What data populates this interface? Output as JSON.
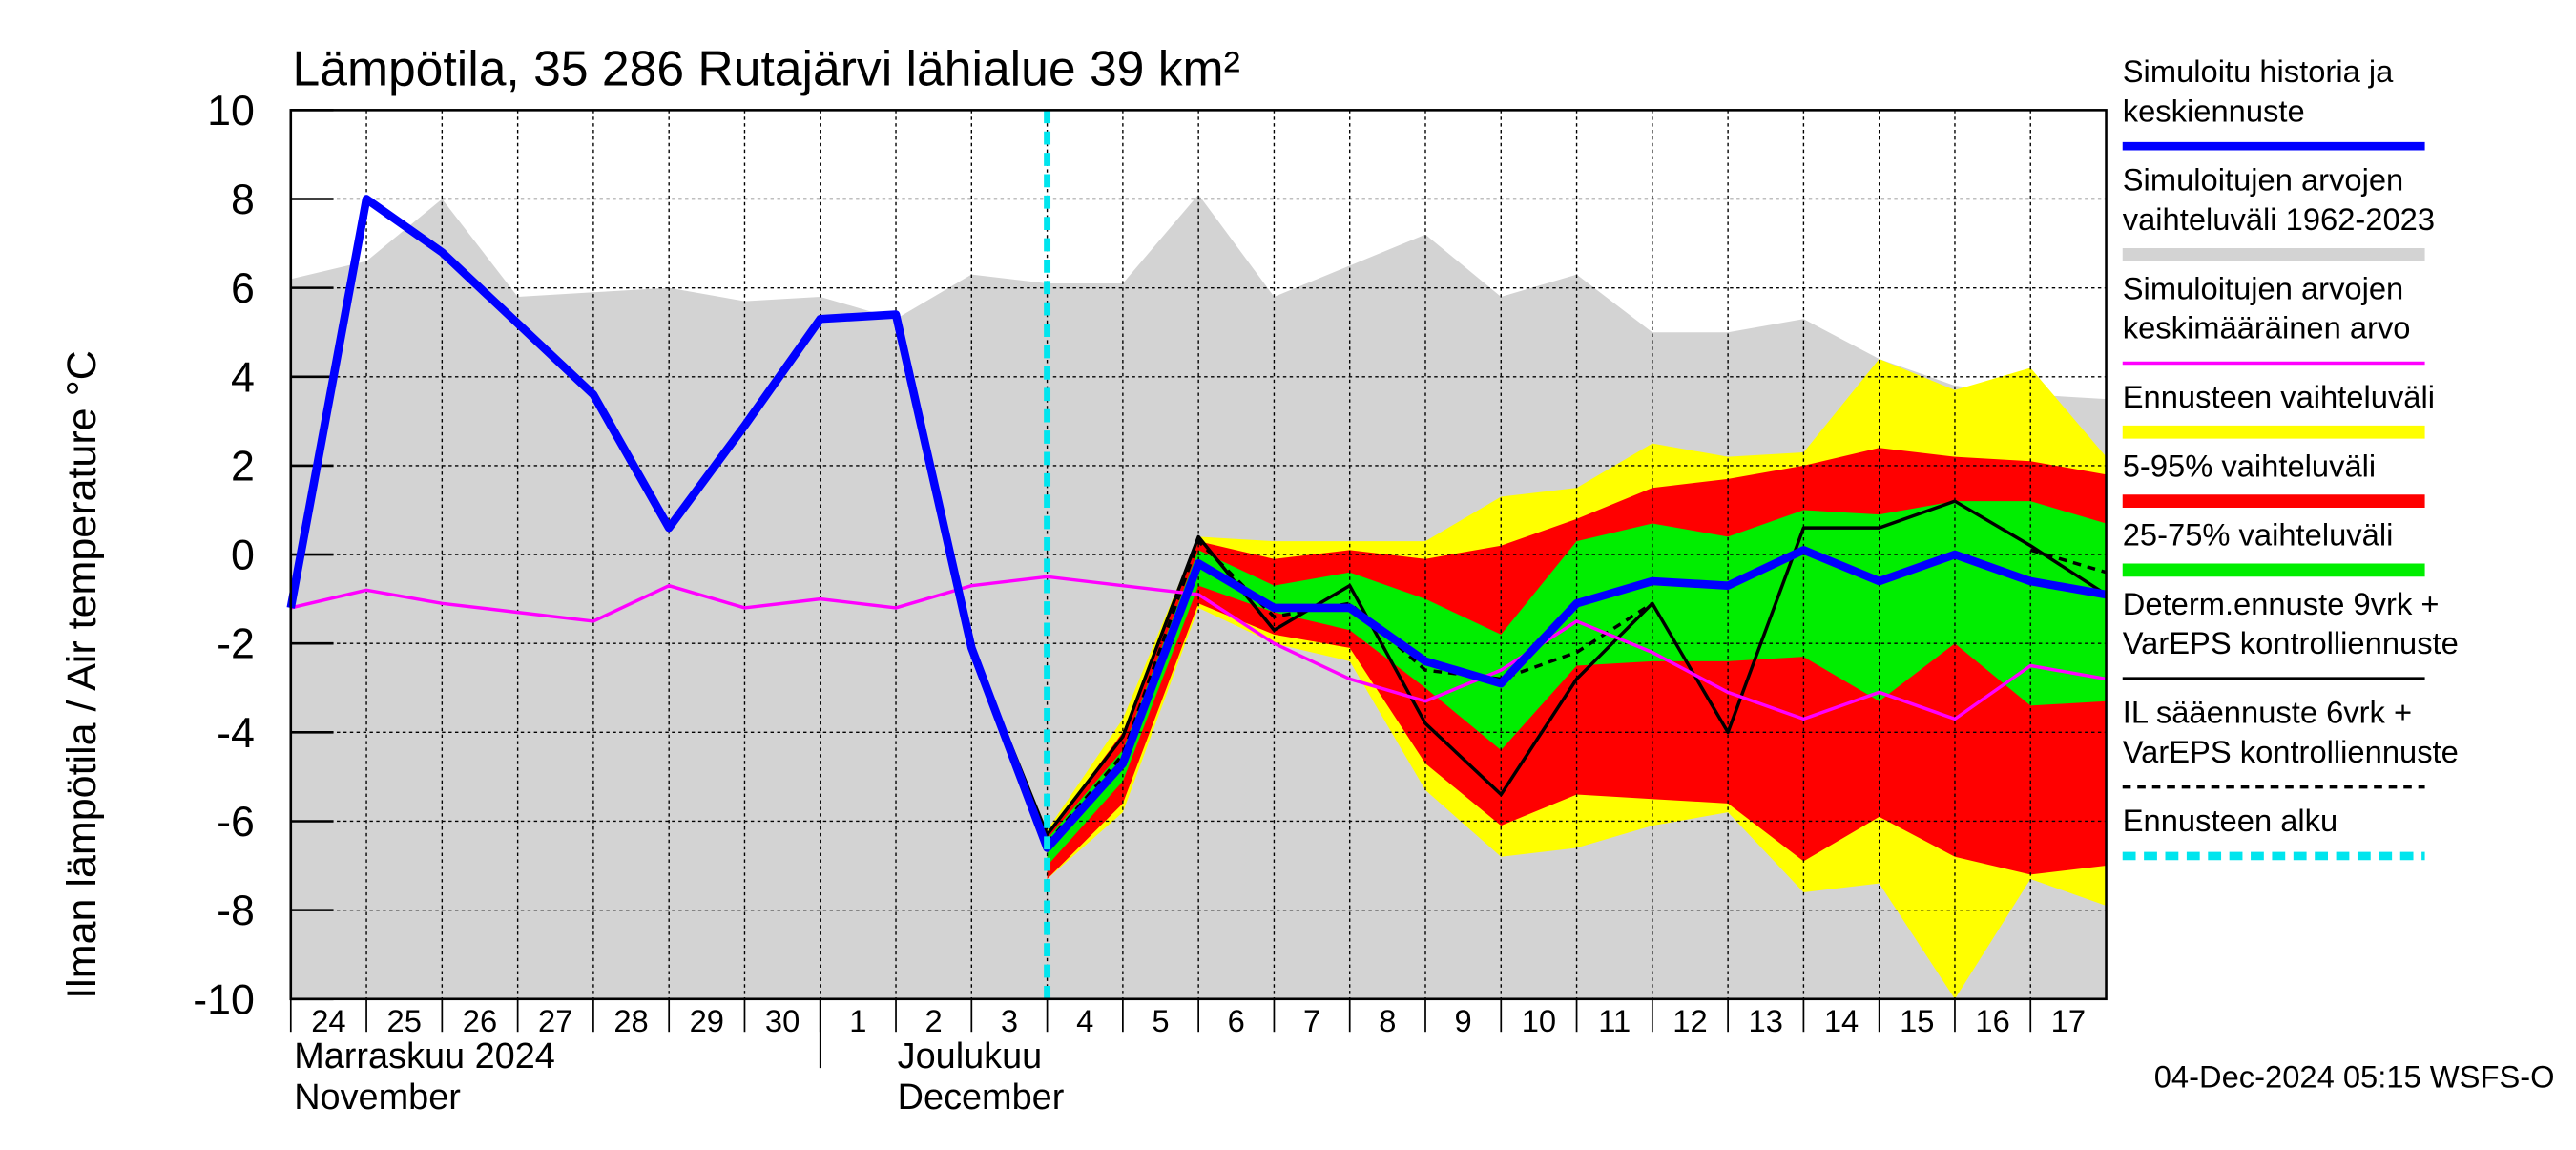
{
  "chart_data": {
    "type": "line",
    "title": "Lämpötila, 35 286 Rutajärvi lähialue 39 km²",
    "y_label": "Ilman lämpötila / Air temperature   °C",
    "footer": "04-Dec-2024 05:15 WSFS-O",
    "xlim": [
      0,
      24
    ],
    "xticks": [
      {
        "value": 0,
        "label": "24"
      },
      {
        "value": 1,
        "label": "25"
      },
      {
        "value": 2,
        "label": "26"
      },
      {
        "value": 3,
        "label": "27"
      },
      {
        "value": 4,
        "label": "28"
      },
      {
        "value": 5,
        "label": "29"
      },
      {
        "value": 6,
        "label": "30"
      },
      {
        "value": 7,
        "label": "1"
      },
      {
        "value": 8,
        "label": "2"
      },
      {
        "value": 9,
        "label": "3"
      },
      {
        "value": 10,
        "label": "4"
      },
      {
        "value": 11,
        "label": "5"
      },
      {
        "value": 12,
        "label": "6"
      },
      {
        "value": 13,
        "label": "7"
      },
      {
        "value": 14,
        "label": "8"
      },
      {
        "value": 15,
        "label": "9"
      },
      {
        "value": 16,
        "label": "10"
      },
      {
        "value": 17,
        "label": "11"
      },
      {
        "value": 18,
        "label": "12"
      },
      {
        "value": 19,
        "label": "13"
      },
      {
        "value": 20,
        "label": "14"
      },
      {
        "value": 21,
        "label": "15"
      },
      {
        "value": 22,
        "label": "16"
      },
      {
        "value": 23,
        "label": "17"
      }
    ],
    "months": [
      {
        "start": 0,
        "label": [
          "Marraskuu 2024",
          "November"
        ]
      },
      {
        "start": 7,
        "label": [
          "Joulukuu",
          "December"
        ]
      }
    ],
    "ylim": [
      -10,
      10
    ],
    "yticks": [
      -10,
      -8,
      -6,
      -4,
      -2,
      0,
      2,
      4,
      6,
      8,
      10
    ],
    "grid": true,
    "series": [
      {
        "name": [
          "Simuloitu historia ja",
          "keskiennuste"
        ],
        "kind": "line",
        "color": "#0000ff",
        "width": 5,
        "x": [
          0,
          1,
          2,
          3,
          4,
          5,
          6,
          7,
          8,
          9,
          10,
          11,
          12,
          13,
          14,
          15,
          16,
          17,
          18,
          19,
          20,
          21,
          22,
          23,
          24
        ],
        "values": [
          -1.2,
          8.0,
          6.8,
          5.2,
          3.6,
          0.6,
          2.9,
          5.3,
          5.4,
          -2.1,
          -6.6,
          -4.7,
          -0.2,
          -1.2,
          -1.2,
          -2.4,
          -2.9,
          -1.1,
          -0.6,
          -0.7,
          0.1,
          -0.6,
          0.0,
          -0.6,
          -0.9
        ]
      },
      {
        "name": [
          "Simuloitujen arvojen",
          "vaihteluväli 1962-2023"
        ],
        "kind": "band",
        "color": "#d3d3d3",
        "x": [
          0,
          1,
          2,
          3,
          4,
          5,
          6,
          7,
          8,
          9,
          10,
          11,
          12,
          13,
          14,
          15,
          16,
          17,
          18,
          19,
          20,
          21,
          22,
          23,
          24
        ],
        "upper": [
          6.2,
          6.6,
          8.0,
          5.8,
          5.9,
          6.0,
          5.7,
          5.8,
          5.3,
          6.3,
          6.1,
          6.1,
          8.1,
          5.8,
          6.5,
          7.2,
          5.8,
          6.3,
          5.0,
          5.0,
          5.3,
          4.4,
          3.8,
          3.6,
          3.5
        ],
        "lower": [
          -10,
          -10,
          -10,
          -10,
          -10,
          -10,
          -10,
          -10,
          -10,
          -10,
          -10,
          -10,
          -10,
          -10,
          -10,
          -10,
          -10,
          -10,
          -10,
          -10,
          -10,
          -10,
          -10,
          -10,
          -10
        ]
      },
      {
        "name": [
          "Simuloitujen arvojen",
          "keskimääräinen arvo"
        ],
        "kind": "line",
        "color": "#ff00ff",
        "width": 2,
        "x": [
          0,
          1,
          2,
          3,
          4,
          5,
          6,
          7,
          8,
          9,
          10,
          11,
          12,
          13,
          14,
          15,
          16,
          17,
          18,
          19,
          20,
          21,
          22,
          23,
          24
        ],
        "values": [
          -1.2,
          -0.8,
          -1.1,
          -1.3,
          -1.5,
          -0.7,
          -1.2,
          -1.0,
          -1.2,
          -0.7,
          -0.5,
          -0.7,
          -0.9,
          -2.0,
          -2.8,
          -3.3,
          -2.6,
          -1.5,
          -2.2,
          -3.1,
          -3.7,
          -3.1,
          -3.7,
          -2.5,
          -2.8
        ]
      },
      {
        "name": [
          "Ennusteen vaihteluväli"
        ],
        "kind": "band",
        "color": "#ffff00",
        "x": [
          10,
          11,
          12,
          13,
          14,
          15,
          16,
          17,
          18,
          19,
          20,
          21,
          22,
          23,
          24
        ],
        "upper": [
          -6.2,
          -3.7,
          0.4,
          0.3,
          0.3,
          0.3,
          1.3,
          1.5,
          2.5,
          2.2,
          2.3,
          4.4,
          3.7,
          4.2,
          2.2
        ],
        "lower": [
          -7.3,
          -5.8,
          -1.2,
          -2.0,
          -2.4,
          -5.3,
          -6.8,
          -6.6,
          -6.1,
          -5.8,
          -7.6,
          -7.4,
          -10,
          -7.3,
          -7.9
        ]
      },
      {
        "name": [
          "5-95% vaihteluväli"
        ],
        "kind": "band",
        "color": "#ff0000",
        "x": [
          10,
          11,
          12,
          13,
          14,
          15,
          16,
          17,
          18,
          19,
          20,
          21,
          22,
          23,
          24
        ],
        "upper": [
          -6.3,
          -4.0,
          0.3,
          -0.1,
          0.1,
          -0.1,
          0.2,
          0.8,
          1.5,
          1.7,
          2.0,
          2.4,
          2.2,
          2.1,
          1.8
        ],
        "lower": [
          -7.3,
          -5.6,
          -1.1,
          -1.8,
          -2.1,
          -4.7,
          -6.1,
          -5.4,
          -5.5,
          -5.6,
          -6.9,
          -5.9,
          -6.8,
          -7.2,
          -7.0
        ]
      },
      {
        "name": [
          "25-75% vaihteluväli"
        ],
        "kind": "band",
        "color": "#00ee00",
        "x": [
          10,
          11,
          12,
          13,
          14,
          15,
          16,
          17,
          18,
          19,
          20,
          21,
          22,
          23,
          24
        ],
        "upper": [
          -6.4,
          -4.4,
          0.1,
          -0.7,
          -0.4,
          -1.0,
          -1.8,
          0.3,
          0.7,
          0.4,
          1.0,
          0.9,
          1.2,
          1.2,
          0.7
        ],
        "lower": [
          -7.0,
          -5.1,
          -0.7,
          -1.3,
          -1.7,
          -3.0,
          -4.4,
          -2.5,
          -2.4,
          -2.4,
          -2.3,
          -3.3,
          -2.0,
          -3.4,
          -3.3
        ]
      },
      {
        "name": [
          "Determ.ennuste 9vrk +",
          "VarEPS kontrolliennuste"
        ],
        "kind": "line",
        "color": "#000000",
        "width": 2,
        "x": [
          8,
          9,
          10,
          11,
          12,
          13,
          14,
          15,
          16,
          17,
          18,
          19,
          20,
          21,
          22,
          23,
          24
        ],
        "values": [
          5.4,
          -2.1,
          -6.3,
          -4.1,
          0.4,
          -1.7,
          -0.7,
          -3.8,
          -5.4,
          -2.8,
          -1.1,
          -4.0,
          0.6,
          0.6,
          1.2,
          0.2,
          -0.9
        ]
      },
      {
        "name": [
          "IL sääennuste 6vrk  +",
          "  VarEPS kontrolliennuste"
        ],
        "kind": "line",
        "color": "#000000",
        "width": 2,
        "dashed": true,
        "x": [
          10,
          11,
          12,
          13,
          14,
          15,
          16,
          17,
          18,
          19,
          20,
          21,
          22,
          23,
          24
        ],
        "values": [
          -6.5,
          -4.5,
          0.3,
          -1.4,
          -1.1,
          -2.6,
          -2.8,
          -2.2,
          -1.1,
          null,
          null,
          null,
          null,
          0.1,
          -0.4
        ]
      }
    ],
    "forecast_start": {
      "x": 10,
      "name": [
        "Ennusteen alku"
      ],
      "color": "#00e5ee"
    }
  }
}
